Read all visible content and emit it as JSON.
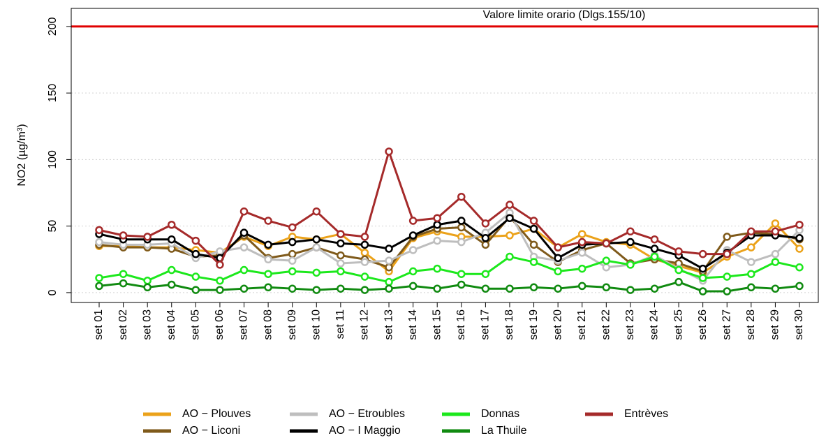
{
  "chart_data": {
    "type": "line",
    "y_label": "NO2 (µg/m³)",
    "categories": [
      "set 01",
      "set 02",
      "set 03",
      "set 04",
      "set 05",
      "set 06",
      "set 07",
      "set 08",
      "set 09",
      "set 10",
      "set 11",
      "set 12",
      "set 13",
      "set 14",
      "set 15",
      "set 16",
      "set 17",
      "set 18",
      "set 19",
      "set 20",
      "set 21",
      "set 22",
      "set 23",
      "set 24",
      "set 25",
      "set 26",
      "set 27",
      "set 28",
      "set 29",
      "set 30"
    ],
    "series": [
      {
        "name": "AO − Plouves",
        "color": "#EBA21A",
        "values": [
          35,
          35,
          34,
          34,
          32,
          30,
          42,
          35,
          42,
          40,
          44,
          30,
          16,
          41,
          46,
          42,
          42,
          43,
          48,
          34,
          44,
          38,
          36,
          25,
          20,
          15,
          27,
          34,
          52,
          33
        ]
      },
      {
        "name": "AO − Liconi",
        "color": "#7F5A1B",
        "values": [
          36,
          34,
          34,
          33,
          27,
          28,
          43,
          26,
          29,
          34,
          28,
          25,
          19,
          42,
          48,
          49,
          36,
          57,
          36,
          23,
          32,
          37,
          22,
          25,
          22,
          16,
          42,
          45,
          44,
          40
        ]
      },
      {
        "name": "AO − Etroubles",
        "color": "#BEBEBE",
        "values": [
          38,
          36,
          36,
          37,
          26,
          31,
          34,
          25,
          24,
          34,
          22,
          23,
          24,
          32,
          39,
          38,
          45,
          60,
          27,
          24,
          30,
          19,
          21,
          28,
          18,
          9,
          32,
          23,
          29,
          47
        ]
      },
      {
        "name": "AO − I Maggio",
        "color": "#000000",
        "values": [
          44,
          40,
          40,
          40,
          29,
          26,
          45,
          36,
          38,
          40,
          37,
          36,
          33,
          43,
          51,
          54,
          41,
          56,
          48,
          26,
          36,
          37,
          38,
          33,
          28,
          18,
          30,
          43,
          43,
          41
        ]
      },
      {
        "name": "Donnas",
        "color": "#1CE81C",
        "values": [
          11,
          14,
          9,
          17,
          12,
          9,
          17,
          14,
          16,
          15,
          16,
          12,
          8,
          16,
          18,
          14,
          14,
          27,
          23,
          16,
          18,
          24,
          21,
          27,
          17,
          11,
          12,
          14,
          23,
          19
        ]
      },
      {
        "name": "La Thuile",
        "color": "#108A10",
        "values": [
          5,
          7,
          4,
          6,
          2,
          2,
          3,
          4,
          3,
          2,
          3,
          2,
          3,
          5,
          3,
          6,
          3,
          3,
          4,
          3,
          5,
          4,
          2,
          3,
          8,
          1,
          1,
          4,
          3,
          5
        ]
      },
      {
        "name": "Entrèves",
        "color": "#A52A2A",
        "values": [
          47,
          43,
          42,
          51,
          39,
          21,
          61,
          54,
          49,
          61,
          44,
          42,
          106,
          54,
          56,
          72,
          52,
          66,
          54,
          34,
          38,
          37,
          46,
          40,
          31,
          29,
          29,
          46,
          46,
          51
        ]
      }
    ],
    "hlines": [
      {
        "value": 200,
        "label": "Valore limite orario (Dlgs.155/10)",
        "color": "#E00000"
      }
    ],
    "ylim": [
      -7.4,
      213.6
    ],
    "yticks": [
      0,
      50,
      100,
      150,
      200
    ],
    "grid": true
  }
}
